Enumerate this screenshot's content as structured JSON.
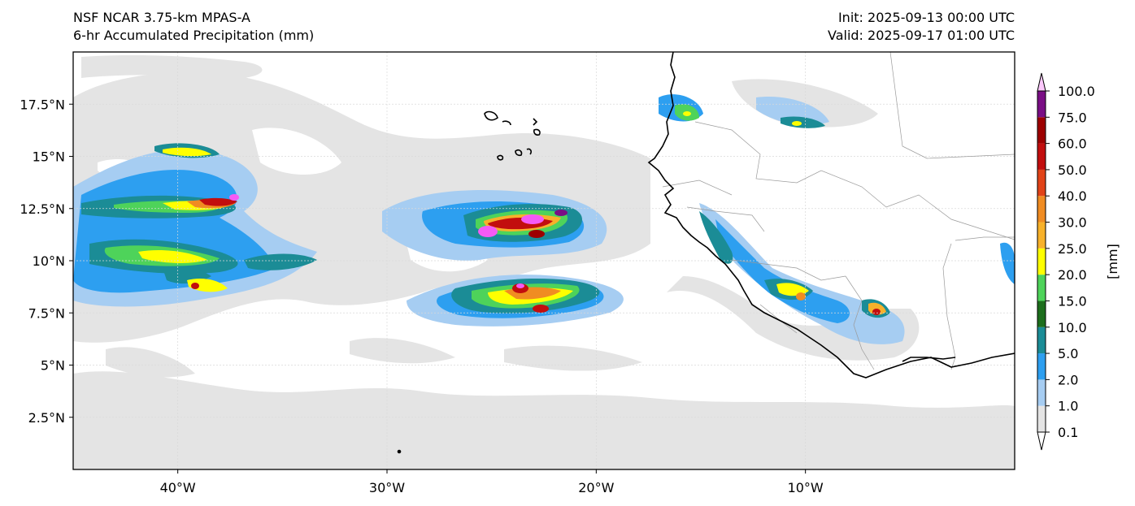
{
  "header": {
    "model": "NSF NCAR 3.75-km MPAS-A",
    "field": "6-hr Accumulated Precipitation (mm)",
    "init": "Init: 2025-09-13 00:00 UTC",
    "valid": "Valid: 2025-09-17 01:00 UTC"
  },
  "map": {
    "lon_range": [
      -45,
      0
    ],
    "lat_range": [
      0,
      20
    ],
    "lon_ticks": [
      {
        "value": -40,
        "label": "40°W"
      },
      {
        "value": -30,
        "label": "30°W"
      },
      {
        "value": -20,
        "label": "20°W"
      },
      {
        "value": -10,
        "label": "10°W"
      }
    ],
    "lat_ticks": [
      {
        "value": 17.5,
        "label": "17.5°N"
      },
      {
        "value": 15,
        "label": "15°N"
      },
      {
        "value": 12.5,
        "label": "12.5°N"
      },
      {
        "value": 10,
        "label": "10°N"
      },
      {
        "value": 7.5,
        "label": "7.5°N"
      },
      {
        "value": 5,
        "label": "5°N"
      },
      {
        "value": 2.5,
        "label": "2.5°N"
      }
    ],
    "gridlines": true,
    "coastline_color": "#000000",
    "border_color": "#9a9a9a",
    "ocean_color": "#ffffff"
  },
  "colorbar": {
    "label": "[mm]",
    "extend": "both",
    "levels": [
      "0.1",
      "1.0",
      "2.0",
      "5.0",
      "10.0",
      "15.0",
      "20.0",
      "25.0",
      "30.0",
      "40.0",
      "50.0",
      "60.0",
      "75.0",
      "100.0"
    ],
    "colors": [
      "#e4e4e4",
      "#a6cdf2",
      "#2d9ff0",
      "#1b8c96",
      "#1d6e1d",
      "#4ed35a",
      "#ffff00",
      "#f7b12a",
      "#f08c22",
      "#e14318",
      "#c20e0e",
      "#9d0000",
      "#7a0e85",
      "#f55af5"
    ],
    "under_color": "#ffffff",
    "over_color": "#fbc8fb"
  },
  "precip_systems": [
    {
      "name": "Central Atlantic convective band",
      "center_lon": -38.5,
      "center_lat": 12.0,
      "peak_mm": 75
    },
    {
      "name": "Mid-Atlantic cluster north",
      "center_lon": -23.5,
      "center_lat": 11.5,
      "peak_mm": 100
    },
    {
      "name": "Mid-Atlantic cluster south",
      "center_lon": -23.5,
      "center_lat": 8.5,
      "peak_mm": 100
    },
    {
      "name": "Guinea coastal convection",
      "center_lon": -12.0,
      "center_lat": 9.0,
      "peak_mm": 30
    },
    {
      "name": "Sierra Leone / Guinea interior cells",
      "center_lon": -6.5,
      "center_lat": 7.5,
      "peak_mm": 40
    },
    {
      "name": "Senegal coast cells",
      "center_lon": -15.5,
      "center_lat": 17.5,
      "peak_mm": 25
    }
  ]
}
